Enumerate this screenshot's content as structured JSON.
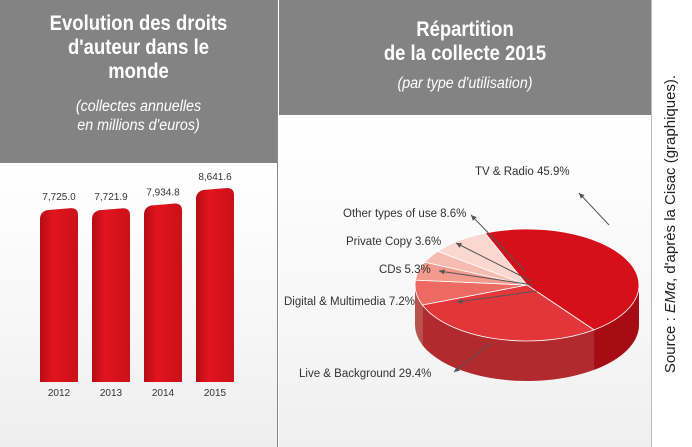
{
  "left": {
    "title_lines": [
      "Evolution des droits",
      "d'auteur dans le",
      "monde"
    ],
    "subtitle_lines": [
      "(collectes annuelles",
      "en millions d'euros)"
    ]
  },
  "right": {
    "title_lines": [
      "Répartition",
      "de la collecte 2015"
    ],
    "subtitle": "(par type d'utilisation)"
  },
  "source": {
    "prefix": "Source : ",
    "italic": "EMα",
    "suffix": ", d'après la Cisac (graphiques)."
  },
  "colors": {
    "bar": "#e3141d",
    "bar_dark": "#b50d14",
    "header": "#838383"
  },
  "chart_data": [
    {
      "type": "bar",
      "categories": [
        "2012",
        "2013",
        "2014",
        "2015"
      ],
      "values": [
        7725.0,
        7721.9,
        7934.8,
        8641.6
      ],
      "value_labels": [
        "7,725.0",
        "7,721.9",
        "7,934.8",
        "8,641.6"
      ],
      "title": "Evolution des droits d'auteur dans le monde",
      "subtitle": "(collectes annuelles en millions d'euros)"
    },
    {
      "type": "pie",
      "title": "Répartition de la collecte 2015",
      "subtitle": "(par type d'utilisation)",
      "slices": [
        {
          "label": "TV & Radio",
          "value": 45.9,
          "display": "TV & Radio 45.9%",
          "color": "#d6101a"
        },
        {
          "label": "Live & Background",
          "value": 29.4,
          "display": "Live & Background 29.4%",
          "color": "#e3363a"
        },
        {
          "label": "Digital & Multimedia",
          "value": 7.2,
          "display": "Digital & Multimedia 7.2%",
          "color": "#ec6a62"
        },
        {
          "label": "CDs",
          "value": 5.3,
          "display": "CDs 5.3%",
          "color": "#f29a8e"
        },
        {
          "label": "Private Copy",
          "value": 3.6,
          "display": "Private Copy 3.6%",
          "color": "#f6bcb2"
        },
        {
          "label": "Other types of use",
          "value": 8.6,
          "display": "Other types of use 8.6%",
          "color": "#fad8d0"
        }
      ]
    }
  ]
}
